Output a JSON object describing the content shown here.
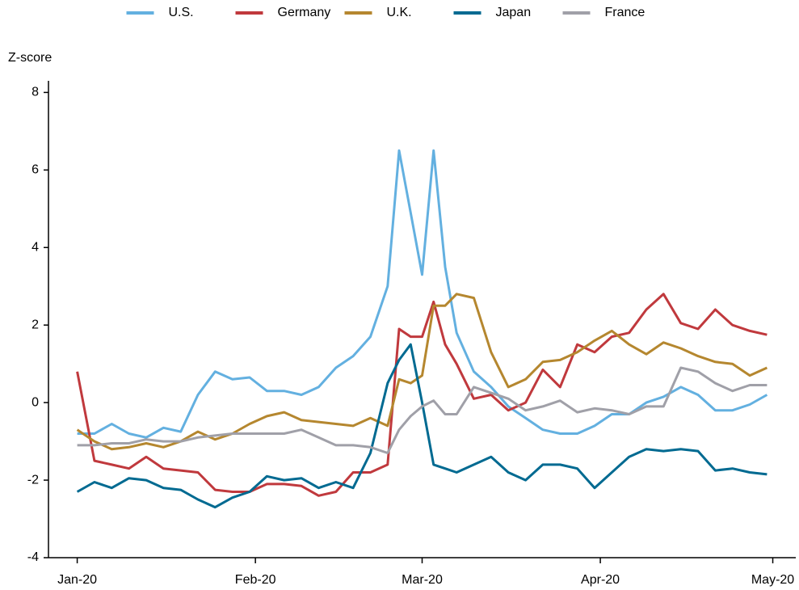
{
  "chart_data": {
    "type": "line",
    "y_label": "Z-score",
    "legend": "top",
    "x": [
      0,
      3,
      6,
      9,
      12,
      15,
      18,
      21,
      24,
      27,
      30,
      33,
      36,
      39,
      42,
      45,
      48,
      51,
      54,
      56,
      58,
      60,
      62,
      64,
      66,
      69,
      72,
      75,
      78,
      81,
      84,
      87,
      90,
      93,
      96,
      99,
      102,
      105,
      108,
      111,
      114,
      117,
      120
    ],
    "xlim": [
      -5,
      125
    ],
    "xticks": [
      {
        "value": 0,
        "label": "Jan-20"
      },
      {
        "value": 31,
        "label": "Feb-20"
      },
      {
        "value": 60,
        "label": "Mar-20"
      },
      {
        "value": 91,
        "label": "Apr-20"
      },
      {
        "value": 121,
        "label": "May-20"
      }
    ],
    "ylim": [
      -4,
      8.3
    ],
    "yticks": [
      -4,
      -2,
      0,
      2,
      4,
      6,
      8
    ],
    "series": [
      {
        "name": "U.S.",
        "color": "#63b0e0",
        "values": [
          -0.8,
          -0.8,
          -0.55,
          -0.8,
          -0.9,
          -0.65,
          -0.75,
          0.2,
          0.8,
          0.6,
          0.65,
          0.3,
          0.3,
          0.2,
          0.4,
          0.9,
          1.2,
          1.7,
          3.0,
          6.5,
          4.9,
          3.3,
          6.5,
          3.5,
          1.8,
          0.8,
          0.4,
          -0.1,
          -0.4,
          -0.7,
          -0.8,
          -0.8,
          -0.6,
          -0.3,
          -0.3,
          0.0,
          0.15,
          0.4,
          0.2,
          -0.2,
          -0.2,
          -0.05,
          0.2
        ]
      },
      {
        "name": "Germany",
        "color": "#c0393d",
        "values": [
          0.8,
          -1.5,
          -1.6,
          -1.7,
          -1.4,
          -1.7,
          -1.75,
          -1.8,
          -2.25,
          -2.3,
          -2.3,
          -2.1,
          -2.1,
          -2.15,
          -2.4,
          -2.3,
          -1.8,
          -1.8,
          -1.6,
          1.9,
          1.7,
          1.7,
          2.6,
          1.5,
          1.0,
          0.1,
          0.2,
          -0.2,
          0.0,
          0.85,
          0.4,
          1.5,
          1.3,
          1.7,
          1.8,
          2.4,
          2.8,
          2.05,
          1.9,
          2.4,
          2.0,
          1.85,
          1.75
        ]
      },
      {
        "name": "U.K.",
        "color": "#b5872f",
        "values": [
          -0.7,
          -1.0,
          -1.2,
          -1.15,
          -1.05,
          -1.15,
          -1.0,
          -0.75,
          -0.95,
          -0.8,
          -0.55,
          -0.35,
          -0.25,
          -0.45,
          -0.5,
          -0.55,
          -0.6,
          -0.4,
          -0.6,
          0.6,
          0.5,
          0.7,
          2.5,
          2.5,
          2.8,
          2.7,
          1.3,
          0.4,
          0.6,
          1.05,
          1.1,
          1.3,
          1.6,
          1.85,
          1.5,
          1.25,
          1.55,
          1.4,
          1.2,
          1.05,
          1.0,
          0.7,
          0.9
        ]
      },
      {
        "name": "Japan",
        "color": "#006a91",
        "values": [
          -2.3,
          -2.05,
          -2.2,
          -1.95,
          -2.0,
          -2.2,
          -2.25,
          -2.5,
          -2.7,
          -2.45,
          -2.3,
          -1.9,
          -2.0,
          -1.95,
          -2.2,
          -2.05,
          -2.2,
          -1.3,
          0.5,
          1.1,
          1.5,
          0.0,
          -1.6,
          -1.7,
          -1.8,
          -1.6,
          -1.4,
          -1.8,
          -2.0,
          -1.6,
          -1.6,
          -1.7,
          -2.2,
          -1.8,
          -1.4,
          -1.2,
          -1.25,
          -1.2,
          -1.25,
          -1.75,
          -1.7,
          -1.8,
          -1.85
        ]
      },
      {
        "name": "France",
        "color": "#a0a0a8",
        "values": [
          -1.1,
          -1.1,
          -1.05,
          -1.05,
          -0.95,
          -1.0,
          -1.0,
          -0.9,
          -0.85,
          -0.8,
          -0.8,
          -0.8,
          -0.8,
          -0.7,
          -0.9,
          -1.1,
          -1.1,
          -1.15,
          -1.3,
          -0.7,
          -0.35,
          -0.1,
          0.05,
          -0.3,
          -0.3,
          0.4,
          0.25,
          0.1,
          -0.2,
          -0.1,
          0.05,
          -0.25,
          -0.15,
          -0.2,
          -0.3,
          -0.1,
          -0.1,
          0.9,
          0.8,
          0.5,
          0.3,
          0.45,
          0.45
        ]
      }
    ]
  }
}
